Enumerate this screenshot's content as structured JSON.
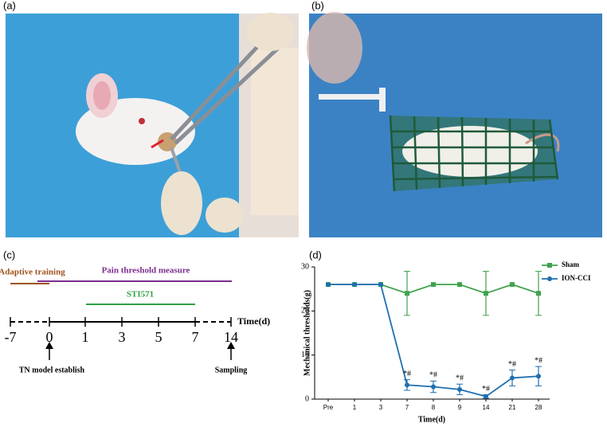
{
  "panels": {
    "a": "(a)",
    "b": "(b)",
    "c": "(c)",
    "d": "(d)"
  },
  "timeline": {
    "pain_label": "Pain threshold measure",
    "adaptive_label": "Adaptive training",
    "drug_label": "STI571",
    "axis_label": "Time(d)",
    "ticks": [
      "-7",
      "0",
      "1",
      "3",
      "5",
      "7",
      "14"
    ],
    "model_label": "TN model establish",
    "sampling_label": "Sampling"
  },
  "chart_data": {
    "type": "line",
    "xlabel": "Time(d)",
    "ylabel": "Mechanical thresholds(g)",
    "categories": [
      "Pre",
      "1",
      "3",
      "7",
      "8",
      "9",
      "14",
      "21",
      "28"
    ],
    "ylim": [
      0,
      30
    ],
    "yticks": [
      0,
      10,
      20,
      30
    ],
    "legend": "top-right",
    "series": [
      {
        "name": "Sham",
        "color": "#3fa34d",
        "marker": "square",
        "values": [
          26,
          26,
          26,
          24,
          26,
          26,
          24,
          26,
          24
        ],
        "errors": [
          0,
          0,
          0,
          5,
          0,
          0,
          5,
          0,
          5
        ]
      },
      {
        "name": "ION-CCI",
        "color": "#1f6fb0",
        "marker": "circle",
        "values": [
          26,
          26,
          26,
          3.2,
          2.8,
          2.2,
          0.6,
          4.8,
          5.2
        ],
        "errors": [
          0,
          0,
          0,
          1.2,
          1.3,
          1.2,
          0.4,
          1.8,
          2.2
        ],
        "annotations": [
          null,
          null,
          null,
          "*#",
          "*#",
          "*#",
          "*#",
          "*#",
          "*#"
        ]
      }
    ]
  }
}
